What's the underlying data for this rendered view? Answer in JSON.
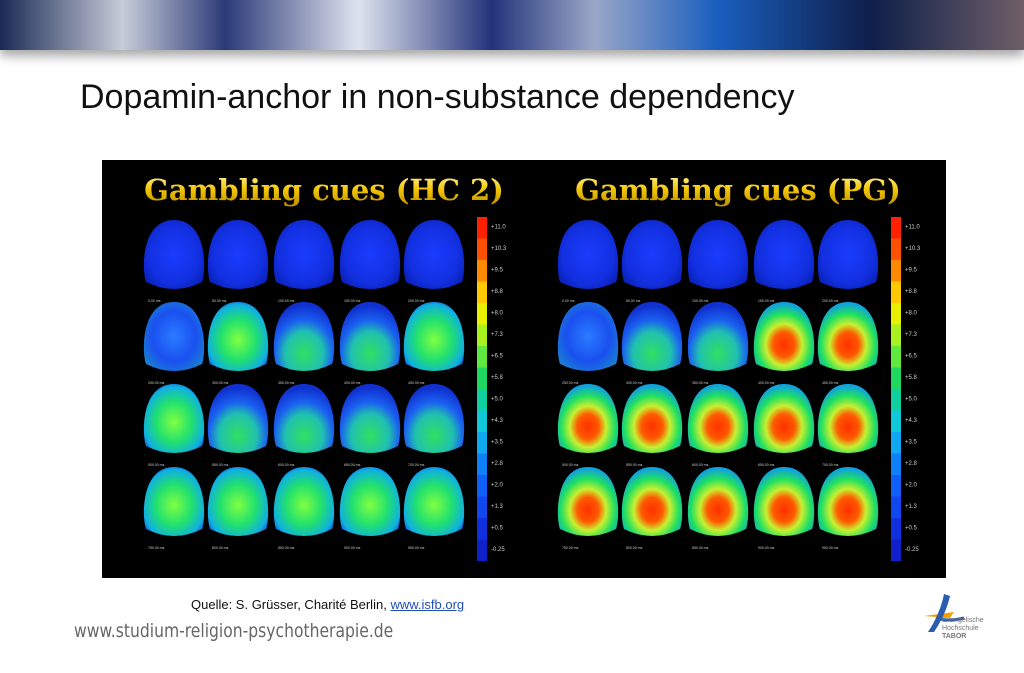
{
  "title": "Dopamin-anchor in non-substance dependency",
  "panels": [
    {
      "title": "Gambling cues (HC 2)",
      "time_labels": [
        "0.00 ms",
        "50.00 ms",
        "100.00 ms",
        "150.00 ms",
        "200.00 ms",
        "250.00 ms",
        "300.00 ms",
        "350.00 ms",
        "400.00 ms",
        "450.00 ms",
        "500.00 ms",
        "550.00 ms",
        "600.00 ms",
        "650.00 ms",
        "700.00 ms",
        "750.00 ms",
        "800.00 ms",
        "850.00 ms",
        "900.00 ms",
        "950.00 ms"
      ],
      "scale_labels": [
        "+11.0",
        "+10.3",
        "+9.5",
        "+8.8",
        "+8.0",
        "+7.3",
        "+6.5",
        "+5.8",
        "+5.0",
        "+4.3",
        "+3.5",
        "+2.8",
        "+2.0",
        "+1.3",
        "+0.5",
        "-0.25"
      ]
    },
    {
      "title": "Gambling cues (PG)",
      "time_labels": [
        "0.00 ms",
        "50.00 ms",
        "100.00 ms",
        "150.00 ms",
        "200.00 ms",
        "250.00 ms",
        "300.00 ms",
        "350.00 ms",
        "400.00 ms",
        "450.00 ms",
        "500.00 ms",
        "550.00 ms",
        "600.00 ms",
        "650.00 ms",
        "700.00 ms",
        "750.00 ms",
        "800.00 ms",
        "850.00 ms",
        "900.00 ms",
        "950.00 ms"
      ],
      "scale_labels": [
        "+11.0",
        "+10.3",
        "+9.5",
        "+8.8",
        "+8.0",
        "+7.3",
        "+6.5",
        "+5.8",
        "+5.0",
        "+4.3",
        "+3.5",
        "+2.8",
        "+2.0",
        "+1.3",
        "+0.5",
        "-0.25"
      ]
    }
  ],
  "source": {
    "text": "Quelle: S. Grüsser, Charité Berlin,",
    "link": "www.isfb.org"
  },
  "footer": "www.studium-religion-psychotherapie.de",
  "logo": [
    "Evangelische",
    "Hochschule",
    "TABOR"
  ]
}
